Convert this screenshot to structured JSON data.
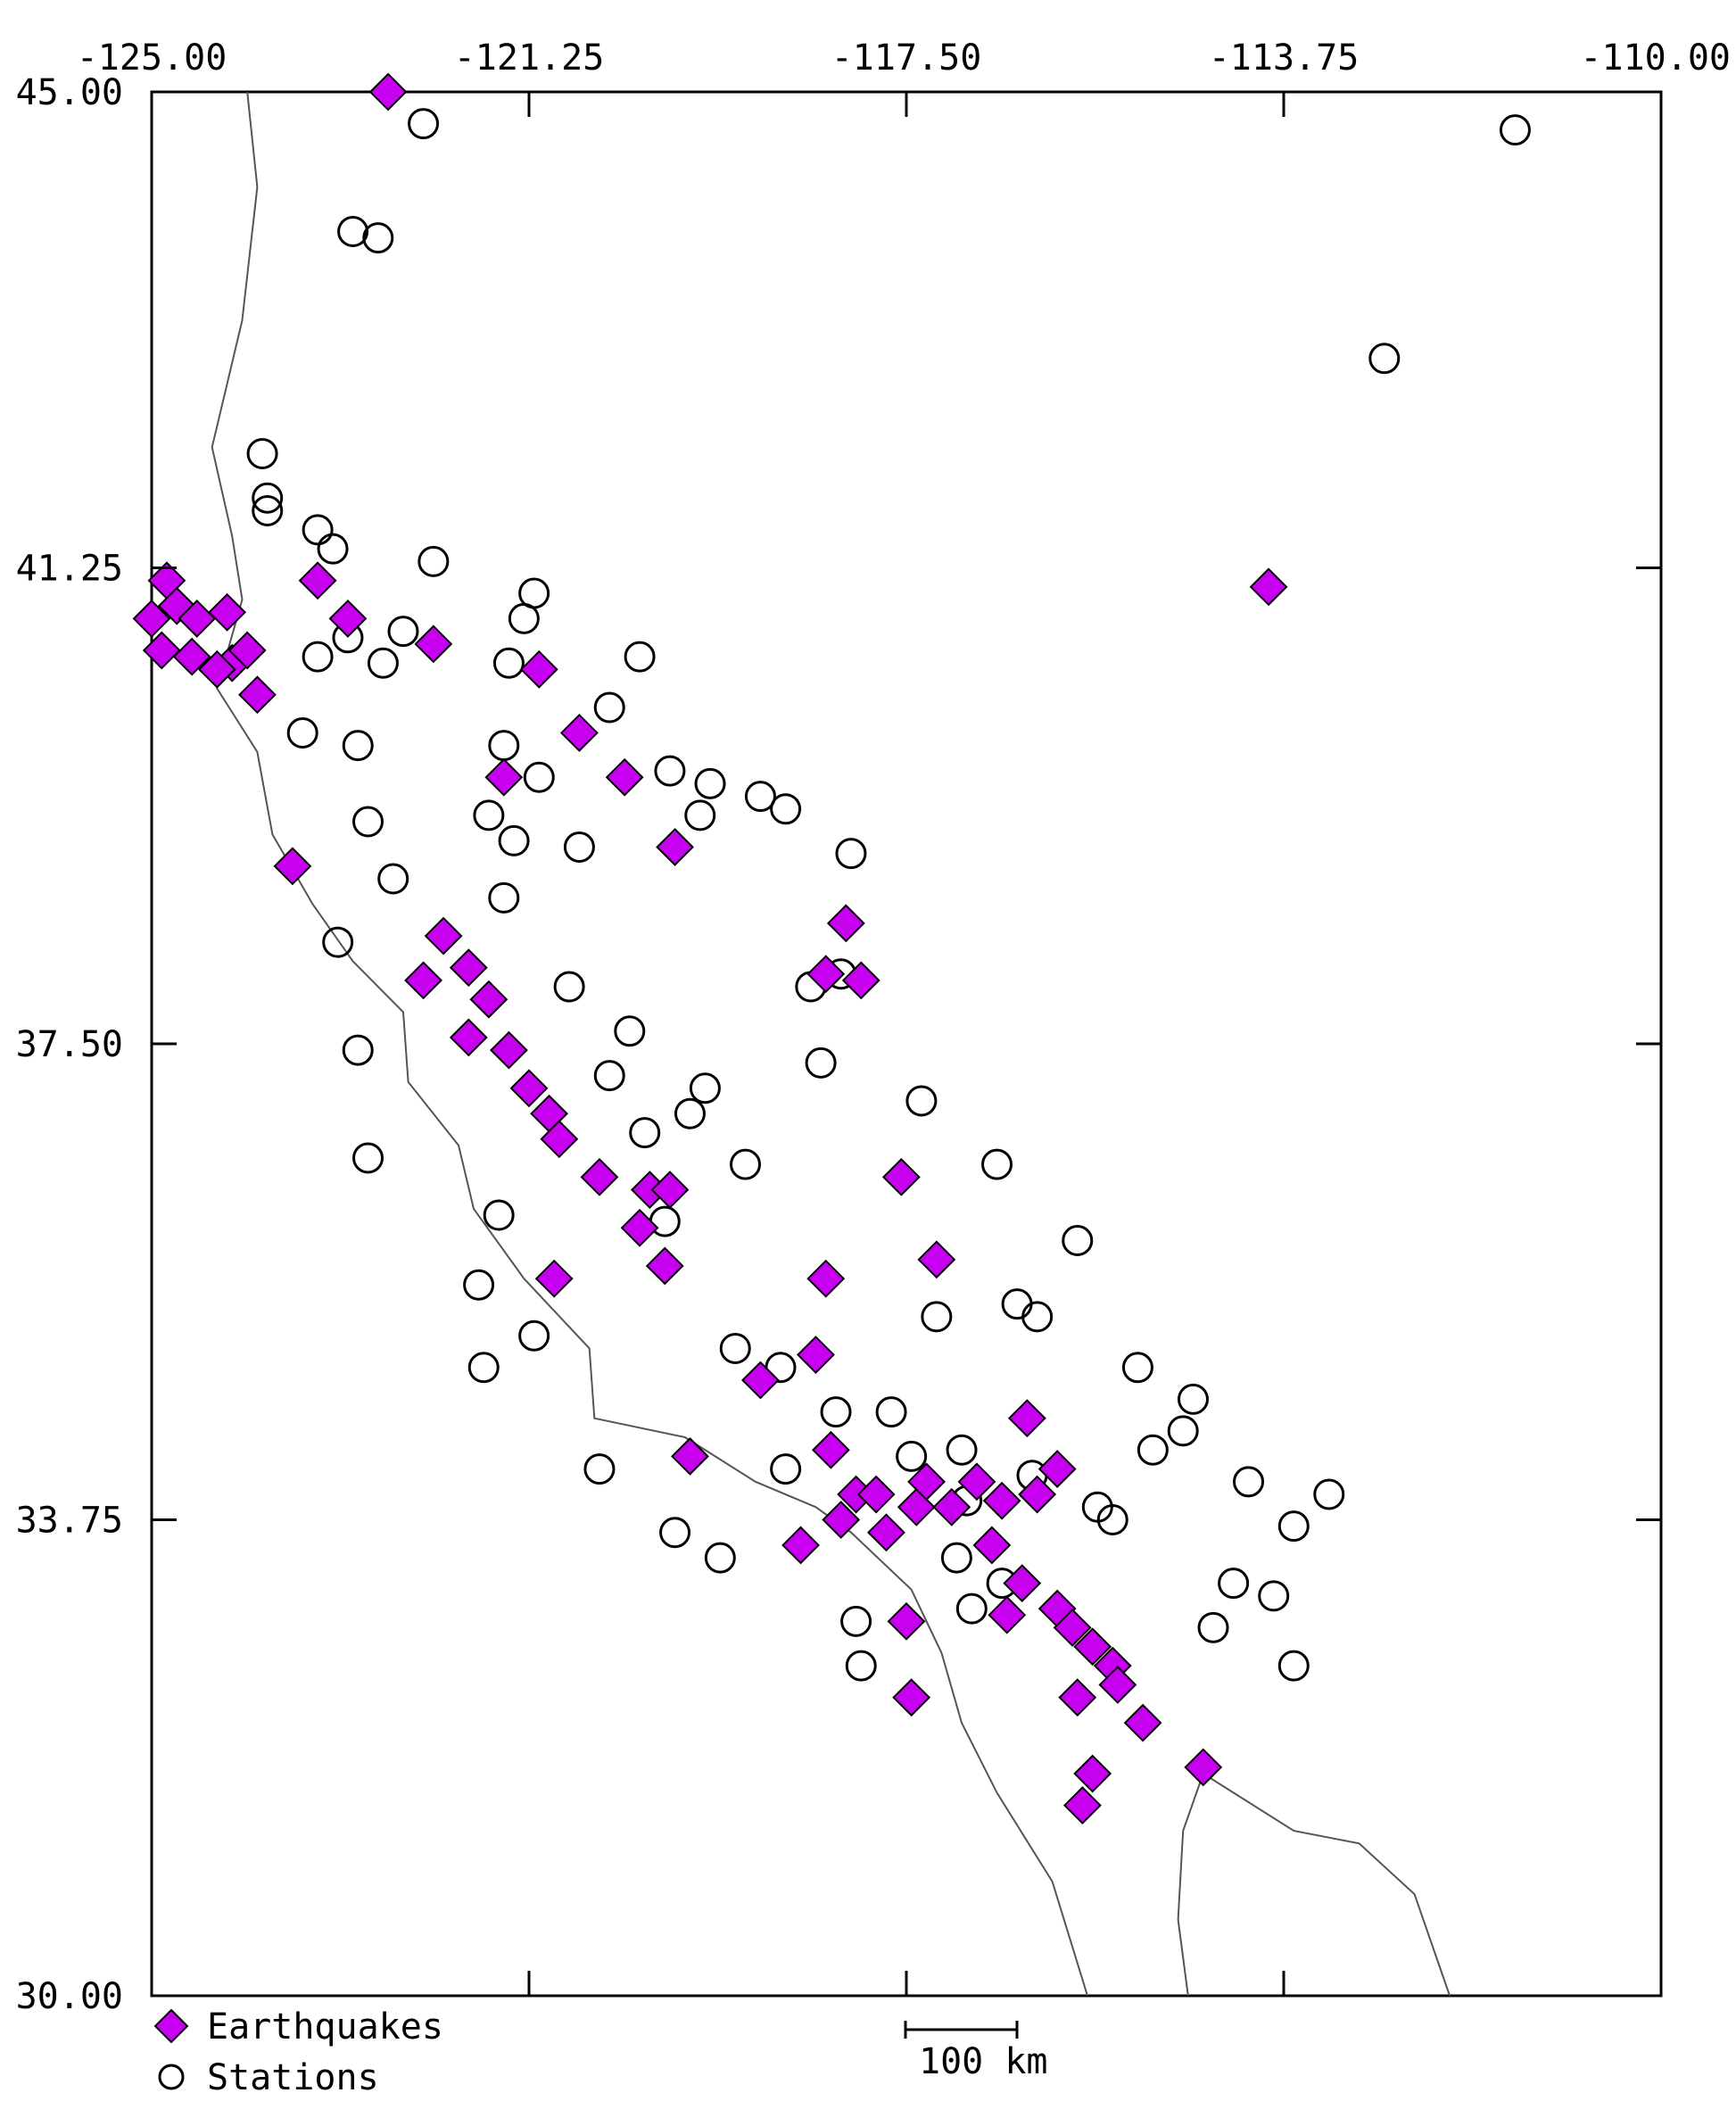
{
  "map": {
    "x_ticks": [
      "-125.00",
      "-121.25",
      "-117.50",
      "-113.75",
      "-110.00"
    ],
    "y_ticks": [
      "45.00",
      "41.25",
      "37.50",
      "33.75",
      "30.00"
    ],
    "lon_range": [
      -125.0,
      -110.0
    ],
    "lat_range": [
      30.0,
      45.0
    ]
  },
  "legend": {
    "earthquakes_label": "Earthquakes",
    "stations_label": "Stations",
    "scale_label": "100 km"
  },
  "colors": {
    "earthquake": "#c800f0",
    "station_stroke": "#000000",
    "coastline": "#555555"
  },
  "earthquakes": [
    [
      -122.65,
      45.0
    ],
    [
      -124.85,
      41.15
    ],
    [
      -125.0,
      40.85
    ],
    [
      -124.75,
      40.95
    ],
    [
      -124.55,
      40.85
    ],
    [
      -124.9,
      40.6
    ],
    [
      -124.6,
      40.55
    ],
    [
      -124.2,
      40.5
    ],
    [
      -124.35,
      40.45
    ],
    [
      -124.05,
      40.6
    ],
    [
      -124.25,
      40.9
    ],
    [
      -123.95,
      40.25
    ],
    [
      -123.35,
      41.15
    ],
    [
      -123.05,
      40.85
    ],
    [
      -122.2,
      40.65
    ],
    [
      -121.15,
      40.45
    ],
    [
      -120.75,
      39.95
    ],
    [
      -121.5,
      39.6
    ],
    [
      -120.3,
      39.6
    ],
    [
      -119.8,
      39.05
    ],
    [
      -123.6,
      38.9
    ],
    [
      -122.1,
      38.35
    ],
    [
      -121.85,
      38.1
    ],
    [
      -122.3,
      38.0
    ],
    [
      -121.65,
      37.85
    ],
    [
      -121.85,
      37.55
    ],
    [
      -121.45,
      37.45
    ],
    [
      -121.25,
      37.15
    ],
    [
      -121.05,
      36.95
    ],
    [
      -120.95,
      36.75
    ],
    [
      -120.55,
      36.45
    ],
    [
      -120.05,
      36.35
    ],
    [
      -120.15,
      36.05
    ],
    [
      -119.85,
      36.35
    ],
    [
      -121.0,
      35.65
    ],
    [
      -119.9,
      35.75
    ],
    [
      -118.1,
      38.45
    ],
    [
      -118.3,
      38.05
    ],
    [
      -117.95,
      38.0
    ],
    [
      -117.55,
      36.45
    ],
    [
      -117.2,
      35.8
    ],
    [
      -118.3,
      35.65
    ],
    [
      -118.4,
      35.05
    ],
    [
      -118.95,
      34.85
    ],
    [
      -119.65,
      34.25
    ],
    [
      -118.25,
      34.3
    ],
    [
      -118.0,
      33.95
    ],
    [
      -117.8,
      33.95
    ],
    [
      -117.4,
      33.85
    ],
    [
      -117.3,
      34.05
    ],
    [
      -117.05,
      33.85
    ],
    [
      -116.8,
      34.05
    ],
    [
      -116.55,
      33.9
    ],
    [
      -116.2,
      33.95
    ],
    [
      -116.65,
      33.55
    ],
    [
      -116.35,
      33.25
    ],
    [
      -116.0,
      33.05
    ],
    [
      -115.85,
      32.9
    ],
    [
      -115.65,
      32.75
    ],
    [
      -115.45,
      32.6
    ],
    [
      -115.4,
      32.45
    ],
    [
      -115.15,
      32.15
    ],
    [
      -114.55,
      31.8
    ],
    [
      -115.65,
      31.75
    ],
    [
      -115.75,
      31.5
    ],
    [
      -118.55,
      33.55
    ],
    [
      -117.5,
      32.95
    ],
    [
      -117.45,
      32.35
    ],
    [
      -113.9,
      41.1
    ],
    [
      -116.3,
      34.55
    ],
    [
      -116.0,
      34.15
    ],
    [
      -117.7,
      33.65
    ],
    [
      -118.15,
      33.75
    ],
    [
      -116.5,
      33.0
    ],
    [
      -115.8,
      32.35
    ]
  ],
  "stations": [
    [
      -122.3,
      44.75
    ],
    [
      -123.0,
      43.9
    ],
    [
      -122.75,
      43.85
    ],
    [
      -111.45,
      44.7
    ],
    [
      -112.75,
      42.9
    ],
    [
      -123.9,
      42.15
    ],
    [
      -123.85,
      41.8
    ],
    [
      -123.85,
      41.7
    ],
    [
      -123.35,
      41.55
    ],
    [
      -123.2,
      41.4
    ],
    [
      -122.2,
      41.3
    ],
    [
      -121.2,
      41.05
    ],
    [
      -121.3,
      40.85
    ],
    [
      -122.5,
      40.75
    ],
    [
      -121.45,
      40.5
    ],
    [
      -120.15,
      40.55
    ],
    [
      -123.35,
      40.55
    ],
    [
      -123.05,
      40.7
    ],
    [
      -122.7,
      40.5
    ],
    [
      -120.45,
      40.15
    ],
    [
      -123.5,
      39.95
    ],
    [
      -122.95,
      39.85
    ],
    [
      -121.5,
      39.85
    ],
    [
      -121.15,
      39.6
    ],
    [
      -119.85,
      39.65
    ],
    [
      -119.45,
      39.55
    ],
    [
      -118.95,
      39.45
    ],
    [
      -119.55,
      39.3
    ],
    [
      -118.7,
      39.35
    ],
    [
      -122.85,
      39.25
    ],
    [
      -121.65,
      39.3
    ],
    [
      -121.4,
      39.1
    ],
    [
      -120.75,
      39.05
    ],
    [
      -118.05,
      39.0
    ],
    [
      -121.5,
      38.65
    ],
    [
      -118.15,
      38.05
    ],
    [
      -118.45,
      37.95
    ],
    [
      -119.5,
      37.15
    ],
    [
      -119.1,
      36.55
    ],
    [
      -118.35,
      37.35
    ],
    [
      -117.35,
      37.05
    ],
    [
      -116.6,
      36.55
    ],
    [
      -115.8,
      35.95
    ],
    [
      -116.4,
      35.45
    ],
    [
      -115.2,
      34.95
    ],
    [
      -114.75,
      34.45
    ],
    [
      -114.1,
      34.05
    ],
    [
      -113.65,
      33.7
    ],
    [
      -113.3,
      33.95
    ],
    [
      -114.25,
      33.25
    ],
    [
      -113.85,
      33.15
    ],
    [
      -114.45,
      32.9
    ],
    [
      -113.65,
      32.6
    ],
    [
      -115.6,
      33.85
    ],
    [
      -115.05,
      34.3
    ],
    [
      -114.65,
      34.7
    ],
    [
      -119.35,
      33.45
    ],
    [
      -118.0,
      32.95
    ],
    [
      -117.95,
      32.6
    ],
    [
      -119.8,
      33.65
    ],
    [
      -120.55,
      34.15
    ],
    [
      -121.2,
      35.2
    ],
    [
      -121.75,
      35.6
    ],
    [
      -122.85,
      36.6
    ],
    [
      -121.55,
      36.15
    ],
    [
      -122.95,
      37.45
    ],
    [
      -120.25,
      37.6
    ],
    [
      -120.45,
      37.25
    ],
    [
      -119.65,
      36.95
    ],
    [
      -119.9,
      36.1
    ],
    [
      -117.2,
      35.35
    ],
    [
      -116.2,
      35.35
    ],
    [
      -116.85,
      33.05
    ],
    [
      -117.0,
      33.45
    ],
    [
      -116.55,
      33.25
    ],
    [
      -121.7,
      34.95
    ],
    [
      -122.6,
      38.8
    ],
    [
      -123.15,
      38.3
    ],
    [
      -120.85,
      37.95
    ],
    [
      -120.1,
      36.8
    ],
    [
      -119.2,
      35.1
    ],
    [
      -118.75,
      34.95
    ],
    [
      -118.2,
      34.6
    ],
    [
      -117.65,
      34.6
    ],
    [
      -116.95,
      34.3
    ],
    [
      -116.25,
      34.1
    ],
    [
      -115.45,
      33.75
    ],
    [
      -116.9,
      33.9
    ],
    [
      -117.45,
      34.25
    ],
    [
      -118.7,
      34.15
    ]
  ],
  "coastline": [
    [
      -124.05,
      45.0
    ],
    [
      -123.95,
      44.25
    ],
    [
      -124.1,
      43.2
    ],
    [
      -124.4,
      42.2
    ],
    [
      -124.2,
      41.5
    ],
    [
      -124.1,
      41.0
    ],
    [
      -124.35,
      40.3
    ],
    [
      -123.95,
      39.8
    ],
    [
      -123.8,
      39.15
    ],
    [
      -123.4,
      38.6
    ],
    [
      -123.0,
      38.15
    ],
    [
      -122.5,
      37.75
    ],
    [
      -122.45,
      37.2
    ],
    [
      -121.95,
      36.7
    ],
    [
      -121.8,
      36.2
    ],
    [
      -121.3,
      35.65
    ],
    [
      -120.65,
      35.1
    ],
    [
      -120.6,
      34.55
    ],
    [
      -119.7,
      34.4
    ],
    [
      -119.0,
      34.05
    ],
    [
      -118.4,
      33.85
    ],
    [
      -118.05,
      33.65
    ],
    [
      -117.45,
      33.2
    ],
    [
      -117.15,
      32.7
    ],
    [
      -116.95,
      32.15
    ],
    [
      -116.6,
      31.6
    ],
    [
      -116.05,
      30.9
    ],
    [
      -115.7,
      30.0
    ]
  ],
  "gulf_coast": [
    [
      -114.7,
      30.0
    ],
    [
      -114.8,
      30.6
    ],
    [
      -114.75,
      31.3
    ],
    [
      -114.55,
      31.75
    ],
    [
      -114.15,
      31.55
    ],
    [
      -113.65,
      31.3
    ],
    [
      -113.0,
      31.2
    ],
    [
      -112.45,
      30.8
    ],
    [
      -112.1,
      30.0
    ]
  ]
}
